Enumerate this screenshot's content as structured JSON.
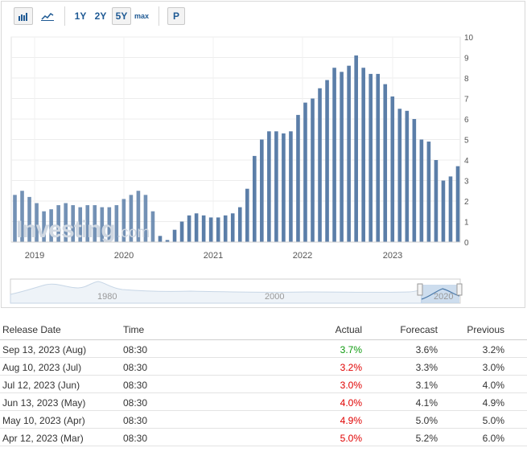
{
  "toolbar": {
    "buttons": [
      "1Y",
      "2Y",
      "5Y",
      "max"
    ],
    "active": "5Y",
    "print_label": "P"
  },
  "watermark": {
    "brand": "Investing",
    "suffix": ".com"
  },
  "navigator": {
    "labels": [
      "1980",
      "2000",
      "2020"
    ]
  },
  "colors": {
    "bar": "#5b7ea8",
    "watermark": "#d0d8e2",
    "green": "#0e9a0e",
    "red": "#e00000"
  },
  "chart_data": {
    "type": "bar",
    "title": "",
    "xlabel": "",
    "ylabel": "",
    "ylim": [
      0,
      10
    ],
    "yticks": [
      "0",
      "1",
      "2",
      "3",
      "4",
      "5",
      "6",
      "7",
      "8",
      "9",
      "10"
    ],
    "year_labels": [
      "2019",
      "2020",
      "2021",
      "2022",
      "2023"
    ],
    "grid": true,
    "values": [
      2.3,
      2.5,
      2.2,
      1.9,
      1.5,
      1.6,
      1.8,
      1.9,
      1.8,
      1.7,
      1.8,
      1.8,
      1.7,
      1.7,
      1.8,
      2.1,
      2.3,
      2.5,
      2.3,
      1.5,
      0.3,
      0.1,
      0.6,
      1.0,
      1.3,
      1.4,
      1.3,
      1.2,
      1.2,
      1.3,
      1.4,
      1.7,
      2.6,
      4.2,
      5.0,
      5.4,
      5.4,
      5.3,
      5.4,
      6.2,
      6.8,
      7.0,
      7.5,
      7.9,
      8.5,
      8.3,
      8.6,
      9.1,
      8.5,
      8.2,
      8.2,
      7.7,
      7.1,
      6.5,
      6.4,
      6.0,
      5.0,
      4.9,
      4.0,
      3.0,
      3.2,
      3.7
    ]
  },
  "table": {
    "headers": {
      "date": "Release Date",
      "time": "Time",
      "actual": "Actual",
      "forecast": "Forecast",
      "previous": "Previous"
    },
    "rows": [
      {
        "date": "Sep 13, 2023 (Aug)",
        "time": "08:30",
        "actual": "3.7%",
        "status": "green",
        "forecast": "3.6%",
        "previous": "3.2%"
      },
      {
        "date": "Aug 10, 2023 (Jul)",
        "time": "08:30",
        "actual": "3.2%",
        "status": "red",
        "forecast": "3.3%",
        "previous": "3.0%"
      },
      {
        "date": "Jul 12, 2023 (Jun)",
        "time": "08:30",
        "actual": "3.0%",
        "status": "red",
        "forecast": "3.1%",
        "previous": "4.0%"
      },
      {
        "date": "Jun 13, 2023 (May)",
        "time": "08:30",
        "actual": "4.0%",
        "status": "red",
        "forecast": "4.1%",
        "previous": "4.9%"
      },
      {
        "date": "May 10, 2023 (Apr)",
        "time": "08:30",
        "actual": "4.9%",
        "status": "red",
        "forecast": "5.0%",
        "previous": "5.0%"
      },
      {
        "date": "Apr 12, 2023 (Mar)",
        "time": "08:30",
        "actual": "5.0%",
        "status": "red",
        "forecast": "5.2%",
        "previous": "6.0%"
      }
    ]
  }
}
